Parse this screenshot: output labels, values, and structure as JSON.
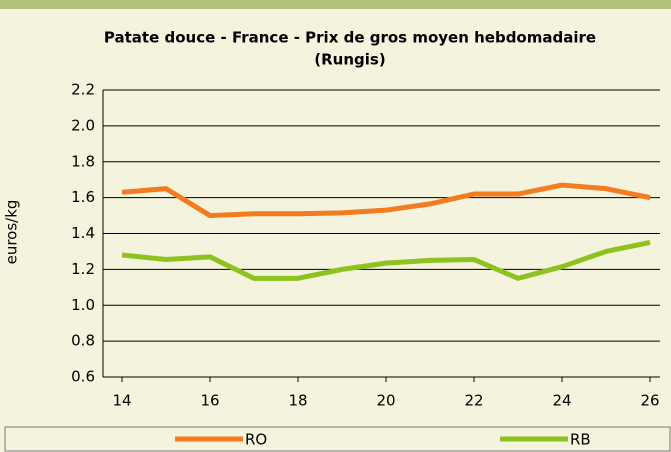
{
  "chart_data": {
    "type": "line",
    "title": "Patate douce - France - Prix de gros moyen hebdomadaire",
    "subtitle": "(Rungis)",
    "y_label": "euros/kg",
    "x": [
      14,
      15,
      16,
      17,
      18,
      19,
      20,
      21,
      22,
      23,
      24,
      25,
      26
    ],
    "series": [
      {
        "name": "RO",
        "color": "#f47b20",
        "values": [
          1.63,
          1.65,
          1.5,
          1.51,
          1.51,
          1.515,
          1.53,
          1.565,
          1.62,
          1.62,
          1.67,
          1.65,
          1.6
        ]
      },
      {
        "name": "RB",
        "color": "#8dc21f",
        "values": [
          1.28,
          1.255,
          1.27,
          1.15,
          1.15,
          1.2,
          1.235,
          1.25,
          1.255,
          1.15,
          1.215,
          1.3,
          1.35
        ]
      }
    ],
    "xlim": [
      14,
      26
    ],
    "xticks": [
      14,
      16,
      18,
      20,
      22,
      24,
      26
    ],
    "ylim": [
      0.6,
      2.2
    ],
    "yticks": [
      0.6,
      0.8,
      {
        "value": 1.0,
        "label": "1.0"
      },
      1.2,
      1.4,
      1.6,
      1.8,
      {
        "value": 2.0,
        "label": "2.0"
      },
      2.2
    ],
    "grid": true,
    "legend": "bottom"
  }
}
